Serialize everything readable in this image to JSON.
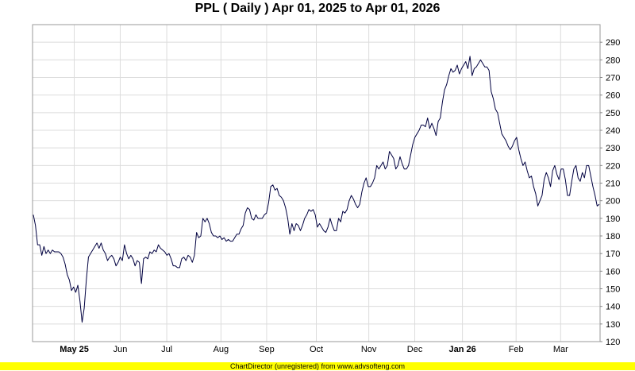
{
  "chart_data": {
    "type": "line",
    "title": "PPL ( Daily ) Apr 01, 2025 to Apr 01, 2026",
    "xlabel": "",
    "ylabel": "",
    "ylim": [
      120,
      300
    ],
    "yticks": [
      120,
      130,
      140,
      150,
      160,
      170,
      180,
      190,
      200,
      210,
      220,
      230,
      240,
      250,
      260,
      270,
      280,
      290
    ],
    "x_tick_labels": [
      "May 25",
      "Jun",
      "Jul",
      "Aug",
      "Sep",
      "Oct",
      "Nov",
      "Dec",
      "Jan 26",
      "Feb",
      "Mar"
    ],
    "x_tick_bold": [
      "May 25",
      "Jan 26"
    ],
    "grid": true,
    "legend": "none",
    "line_color": "#000040",
    "y_axis_side": "right",
    "series": [
      {
        "values": [
          192,
          186,
          175,
          175,
          169,
          174,
          170,
          172,
          170,
          172,
          171,
          171,
          171,
          170,
          168,
          164,
          158,
          155,
          149,
          151,
          148,
          152,
          143,
          131,
          139,
          155,
          168,
          170,
          172,
          174,
          176,
          173,
          176,
          172,
          170,
          166,
          168,
          169,
          167,
          163,
          165,
          168,
          166,
          175,
          170,
          167,
          169,
          167,
          163,
          166,
          165,
          153,
          167,
          168,
          167,
          171,
          170,
          172,
          171,
          175,
          173,
          172,
          171,
          169,
          170,
          167,
          163,
          163,
          162,
          162,
          167,
          168,
          166,
          169,
          168,
          165,
          169,
          182,
          179,
          180,
          190,
          188,
          190,
          187,
          182,
          180,
          180,
          179,
          180,
          178,
          179,
          177,
          178,
          177,
          177,
          179,
          181,
          181,
          184,
          186,
          193,
          196,
          195,
          190,
          189,
          192,
          190,
          190,
          190,
          192,
          193,
          199,
          208,
          209,
          206,
          207,
          203,
          202,
          200,
          196,
          190,
          181,
          187,
          183,
          187,
          186,
          183,
          186,
          190,
          192,
          195,
          194,
          195,
          192,
          185,
          187,
          185,
          183,
          182,
          185,
          190,
          186,
          183,
          183,
          190,
          188,
          194,
          193,
          195,
          200,
          203,
          201,
          198,
          196,
          198,
          205,
          210,
          213,
          208,
          208,
          210,
          213,
          220,
          218,
          220,
          222,
          218,
          220,
          228,
          226,
          224,
          218,
          220,
          225,
          221,
          218,
          218,
          220,
          226,
          232,
          236,
          238,
          240,
          243,
          243,
          242,
          247,
          241,
          244,
          241,
          237,
          245,
          247,
          256,
          263,
          266,
          271,
          275,
          273,
          274,
          277,
          272,
          275,
          277,
          279,
          275,
          282,
          271,
          275,
          276,
          278,
          280,
          278,
          276,
          276,
          274,
          262,
          258,
          252,
          250,
          244,
          238,
          236,
          234,
          231,
          229,
          231,
          234,
          236,
          229,
          224,
          220,
          222,
          217,
          213,
          214,
          208,
          204,
          197,
          200,
          203,
          212,
          216,
          213,
          208,
          217,
          220,
          215,
          212,
          218,
          218,
          212,
          203,
          203,
          211,
          218,
          220,
          213,
          211,
          216,
          213,
          220,
          220,
          214,
          208,
          203,
          197,
          198
        ]
      }
    ]
  },
  "footer": {
    "text": "ChartDirector (unregistered) from www.advsofteng.com"
  }
}
